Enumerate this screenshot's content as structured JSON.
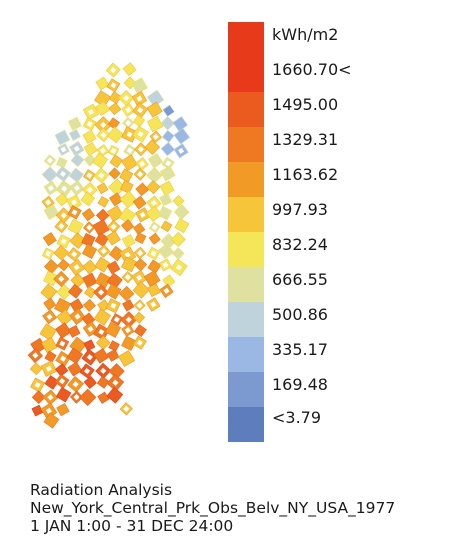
{
  "legend": {
    "unit": "kWh/m2",
    "entries": [
      {
        "label": "1660.70<",
        "color": "#e63a1b"
      },
      {
        "label": "1495.00",
        "color": "#eb5a1f"
      },
      {
        "label": "1329.31",
        "color": "#ef7922"
      },
      {
        "label": "1163.62",
        "color": "#f29a26"
      },
      {
        "label": "997.93",
        "color": "#f7c53a"
      },
      {
        "label": "832.24",
        "color": "#f4e559"
      },
      {
        "label": "666.55",
        "color": "#dfe1a0"
      },
      {
        "label": "500.86",
        "color": "#bfd3dc"
      },
      {
        "label": "335.17",
        "color": "#9bb7e4"
      },
      {
        "label": "169.48",
        "color": "#7c99d0"
      },
      {
        "label": "<3.79",
        "color": "#5d7dbd"
      }
    ],
    "top_color": "#e63a1b"
  },
  "caption": {
    "line1": "Radiation Analysis",
    "line2": "New_York_Central_Prk_Obs_Belv_NY_USA_1977",
    "line3": "1 JAN 1:00 - 31 DEC 24:00"
  }
}
